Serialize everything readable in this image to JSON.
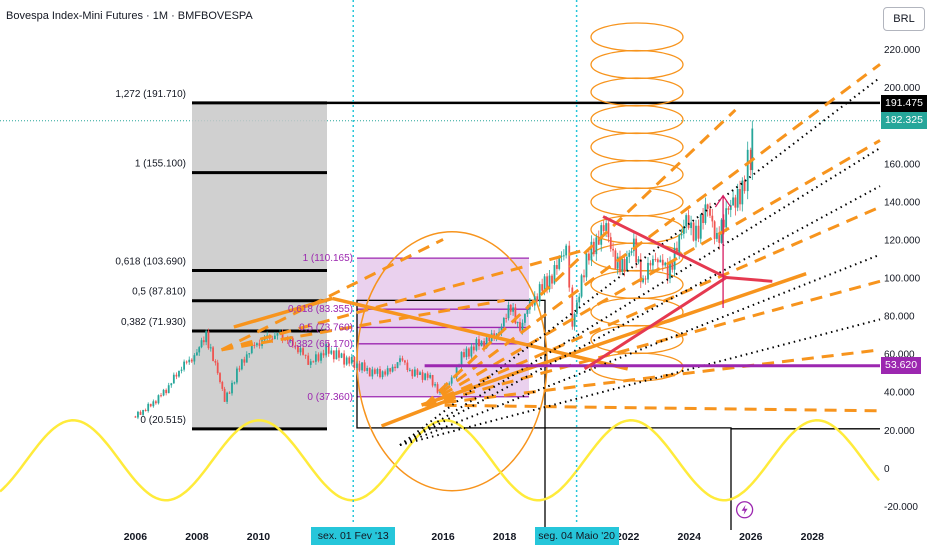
{
  "chart_title": "Bovespa Index-Mini Futures · 1M · BMFBOVESPA",
  "currency_button": "BRL",
  "colors": {
    "candle_up": "#26a69a",
    "candle_down": "#ef5350",
    "fib_line": "#000000",
    "fib_fill": "#c8c8c8",
    "inner_fib": "#9c27b0",
    "inner_fib_fill": "#e1bee7",
    "orange": "#f7941d",
    "wave": "#ffeb3b",
    "red_lines": "#e53950",
    "cycle_line": "#26c6da",
    "price_tag": "#26a69a",
    "purple_tag": "#9c27b0"
  },
  "chart_data": {
    "type": "candlestick",
    "x_label": "",
    "y_label": "",
    "ylim": [
      -30000,
      230000
    ],
    "xlim": [
      2001.6,
      2030.2
    ],
    "y_ticks": [
      "-20.000",
      "0",
      "20.000",
      "40.000",
      "60.000",
      "80.000",
      "100.000",
      "120.000",
      "140.000",
      "160.000",
      "180.000",
      "200.000",
      "220.000"
    ],
    "y_tick_values": [
      -20000,
      0,
      20000,
      40000,
      60000,
      80000,
      100000,
      120000,
      140000,
      160000,
      180000,
      200000,
      220000
    ],
    "x_ticks": [
      "2006",
      "2008",
      "2010",
      "2016",
      "2018",
      "2022",
      "2024",
      "2026",
      "2028"
    ],
    "x_tick_values": [
      2006,
      2008,
      2010,
      2016,
      2018,
      2022,
      2024,
      2026,
      2028
    ],
    "price_path": [
      [
        2006.0,
        27000
      ],
      [
        2006.5,
        33000
      ],
      [
        2007.0,
        41000
      ],
      [
        2007.5,
        53000
      ],
      [
        2008.0,
        60000
      ],
      [
        2008.3,
        70000
      ],
      [
        2008.6,
        55000
      ],
      [
        2008.9,
        35000
      ],
      [
        2009.3,
        50000
      ],
      [
        2009.7,
        62000
      ],
      [
        2010.2,
        68000
      ],
      [
        2010.7,
        70000
      ],
      [
        2011.2,
        64000
      ],
      [
        2011.7,
        55000
      ],
      [
        2012.2,
        62000
      ],
      [
        2012.7,
        58000
      ],
      [
        2013.2,
        54000
      ],
      [
        2013.7,
        50000
      ],
      [
        2014.2,
        50000
      ],
      [
        2014.6,
        57000
      ],
      [
        2015.0,
        50000
      ],
      [
        2015.5,
        48000
      ],
      [
        2015.9,
        40000
      ],
      [
        2016.2,
        44000
      ],
      [
        2016.6,
        58000
      ],
      [
        2017.0,
        64000
      ],
      [
        2017.5,
        67000
      ],
      [
        2017.9,
        74000
      ],
      [
        2018.2,
        84000
      ],
      [
        2018.5,
        74000
      ],
      [
        2018.9,
        88000
      ],
      [
        2019.3,
        96000
      ],
      [
        2019.7,
        105000
      ],
      [
        2020.0,
        115000
      ],
      [
        2020.2,
        75000
      ],
      [
        2020.5,
        100000
      ],
      [
        2020.9,
        118000
      ],
      [
        2021.3,
        126000
      ],
      [
        2021.6,
        110000
      ],
      [
        2021.9,
        104000
      ],
      [
        2022.2,
        118000
      ],
      [
        2022.5,
        98000
      ],
      [
        2022.9,
        112000
      ],
      [
        2023.3,
        102000
      ],
      [
        2023.6,
        118000
      ],
      [
        2023.9,
        128000
      ],
      [
        2024.3,
        124000
      ],
      [
        2024.6,
        136000
      ],
      [
        2024.9,
        122000
      ],
      [
        2025.2,
        132000
      ],
      [
        2025.5,
        140000
      ],
      [
        2025.8,
        152000
      ],
      [
        2026.0,
        165000
      ],
      [
        2026.1,
        182325
      ]
    ],
    "fib_outer": {
      "labels": [
        "1,272 (191.710)",
        "1 (155.100)",
        "0,618 (103.690)",
        "0,5 (87.810)",
        "0,382 (71.930)",
        "0 (20.515)"
      ],
      "prices": [
        191710,
        155100,
        103690,
        87810,
        71930,
        20515
      ]
    },
    "fib_inner": {
      "labels": [
        "1 (110.165)",
        "0,618 (83.355)",
        "0,5 (73.760)",
        "0,382 (65.170)",
        "0 (37.360)"
      ],
      "prices": [
        110165,
        83355,
        73760,
        65170,
        37360
      ]
    },
    "price_tags": [
      "191.475",
      "182.325",
      "53.620"
    ],
    "price_tag_values": [
      191475,
      182325,
      53620
    ],
    "date_tags": [
      "sex. 01 Fev '13",
      "seg. 04 Maio '20"
    ],
    "date_tag_years": [
      2013.08,
      2020.34
    ]
  }
}
